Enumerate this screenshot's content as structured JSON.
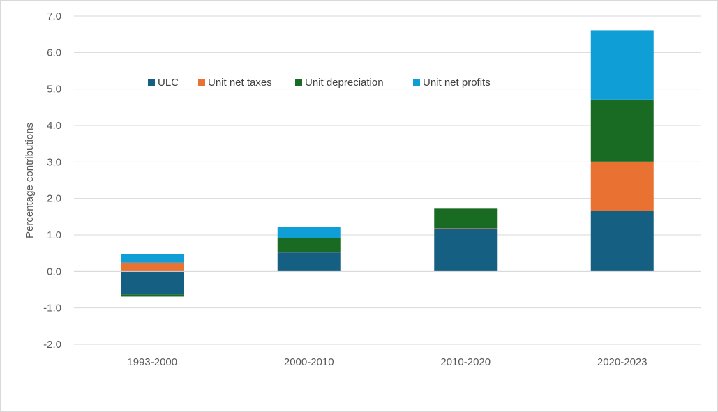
{
  "chart_data": {
    "type": "bar",
    "stacked": true,
    "title": "",
    "xlabel": "",
    "ylabel": "Percentage contributions",
    "ylim": [
      -2.0,
      7.0
    ],
    "yticks": [
      "-2.0",
      "-1.0",
      "0.0",
      "1.0",
      "2.0",
      "3.0",
      "4.0",
      "5.0",
      "6.0",
      "7.0"
    ],
    "grid": "horizontal",
    "legend_position": "top-left inside plot",
    "categories": [
      "1993-2000",
      "2000-2010",
      "2010-2020",
      "2020-2023"
    ],
    "series": [
      {
        "name": "ULC",
        "color": "#156082",
        "values": [
          -0.63,
          0.52,
          1.18,
          1.66
        ]
      },
      {
        "name": "Unit net taxes",
        "color": "#e97132",
        "values": [
          0.24,
          0.01,
          0.01,
          1.35
        ]
      },
      {
        "name": "Unit depreciation",
        "color": "#196b24",
        "values": [
          -0.06,
          0.38,
          0.53,
          1.7
        ]
      },
      {
        "name": "Unit net profits",
        "color": "#0f9ed5",
        "values": [
          0.23,
          0.3,
          0.0,
          1.9
        ]
      }
    ]
  }
}
